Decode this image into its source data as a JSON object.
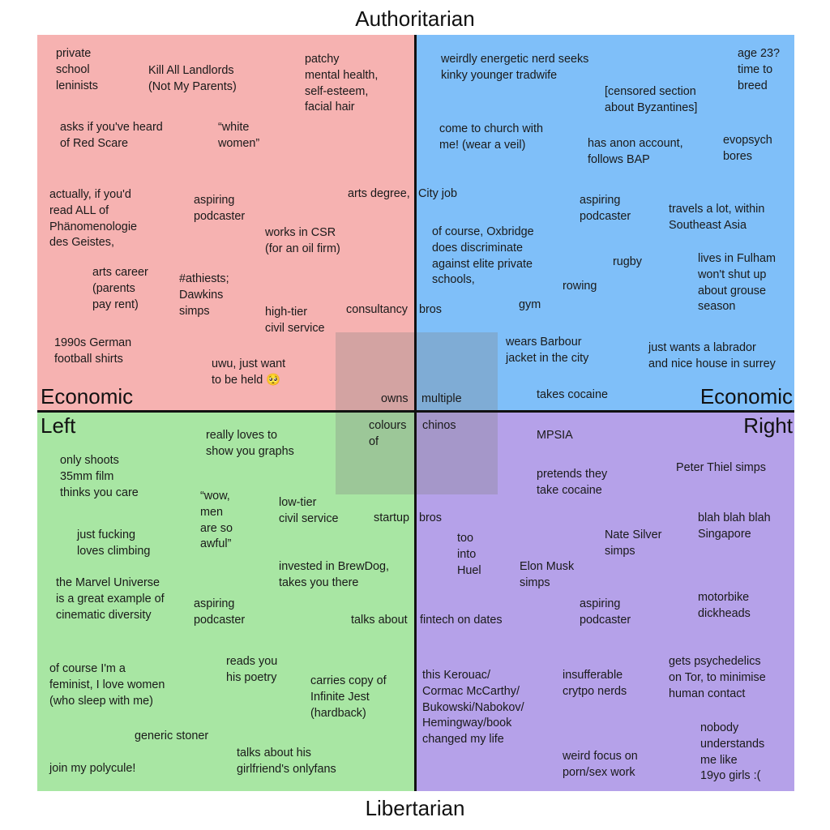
{
  "axes": {
    "top": "Authoritarian",
    "bottom": "Libertarian",
    "economic_left": "Economic",
    "left": "Left",
    "economic_right": "Economic",
    "right": "Right"
  },
  "quadrant_colors": {
    "authoritarian_left": "#f6b2b1",
    "authoritarian_right": "#7fbff9",
    "libertarian_left": "#a8e6a3",
    "libertarian_right": "#b5a1e9"
  },
  "labels": [
    {
      "text": "private\nschool\nleninists"
    },
    {
      "text": "Kill All Landlords\n(Not My Parents)"
    },
    {
      "text": "patchy\nmental health,\nself-esteem,\nfacial hair"
    },
    {
      "text": "asks if you've heard\nof Red Scare"
    },
    {
      "text": "“white\nwomen”"
    },
    {
      "text": "actually, if you'd\nread ALL of\nPhänomenologie\ndes Geistes,"
    },
    {
      "text": "aspiring\npodcaster"
    },
    {
      "text": "arts degree,"
    },
    {
      "text": "works in CSR\n(for an oil firm)"
    },
    {
      "text": "arts career\n(parents\npay rent)"
    },
    {
      "text": "#athiests;\nDawkins\nsimps"
    },
    {
      "text": "high-tier\ncivil service"
    },
    {
      "text": "consultancy"
    },
    {
      "text": "1990s German\nfootball shirts"
    },
    {
      "text": "uwu, just want\nto be held 🥺"
    },
    {
      "text": "owns"
    },
    {
      "text": "weirdly energetic nerd seeks\nkinky younger tradwife"
    },
    {
      "text": "age 23?\ntime to\nbreed"
    },
    {
      "text": "[censored section\nabout Byzantines]"
    },
    {
      "text": "come to church with\nme! (wear a veil)"
    },
    {
      "text": "has anon account,\nfollows BAP"
    },
    {
      "text": "evopsych\nbores"
    },
    {
      "text": "City job"
    },
    {
      "text": "aspiring\npodcaster"
    },
    {
      "text": "travels a lot, within\nSoutheast Asia"
    },
    {
      "text": "of course, Oxbridge\ndoes discriminate\nagainst elite private\nschools,"
    },
    {
      "text": "rugby"
    },
    {
      "text": "lives in Fulham\nwon't shut up\nabout grouse\nseason"
    },
    {
      "text": "rowing"
    },
    {
      "text": "gym"
    },
    {
      "text": "bros"
    },
    {
      "text": "wears Barbour\njacket in the city"
    },
    {
      "text": "just wants a labrador\nand nice house in surrey"
    },
    {
      "text": "takes cocaine"
    },
    {
      "text": "multiple"
    },
    {
      "text": "colours\nof"
    },
    {
      "text": "really loves to\nshow you graphs"
    },
    {
      "text": "only shoots\n35mm film\nthinks you care"
    },
    {
      "text": "“wow,\nmen\nare so\nawful”"
    },
    {
      "text": "low-tier\ncivil service"
    },
    {
      "text": "startup"
    },
    {
      "text": "just fucking\nloves climbing"
    },
    {
      "text": "invested in BrewDog,\ntakes you there"
    },
    {
      "text": "the Marvel Universe\nis a great example of\ncinematic diversity"
    },
    {
      "text": "aspiring\npodcaster"
    },
    {
      "text": "talks about"
    },
    {
      "text": "of course I'm a\nfeminist, I love women\n(who sleep with me)"
    },
    {
      "text": "reads you\nhis poetry"
    },
    {
      "text": "carries copy of\nInfinite Jest\n(hardback)"
    },
    {
      "text": "generic stoner"
    },
    {
      "text": "join my polycule!"
    },
    {
      "text": "talks about his\ngirlfriend's onlyfans"
    },
    {
      "text": "chinos"
    },
    {
      "text": "MPSIA"
    },
    {
      "text": "pretends they\ntake cocaine"
    },
    {
      "text": "Peter Thiel simps"
    },
    {
      "text": "bros"
    },
    {
      "text": "too\ninto\nHuel"
    },
    {
      "text": "Nate Silver\nsimps"
    },
    {
      "text": "blah blah blah\nSingapore"
    },
    {
      "text": "Elon Musk\nsimps"
    },
    {
      "text": "aspiring\npodcaster"
    },
    {
      "text": "motorbike\ndickheads"
    },
    {
      "text": "fintech on dates"
    },
    {
      "text": "this Kerouac/\nCormac McCarthy/\nBukowski/Nabokov/\nHemingway/book\nchanged my life"
    },
    {
      "text": "insufferable\ncrytpo nerds"
    },
    {
      "text": "gets psychedelics\non Tor, to minimise\nhuman contact"
    },
    {
      "text": "weird focus on\nporn/sex work"
    },
    {
      "text": "nobody\nunderstands\nme like\n19yo girls :("
    }
  ]
}
